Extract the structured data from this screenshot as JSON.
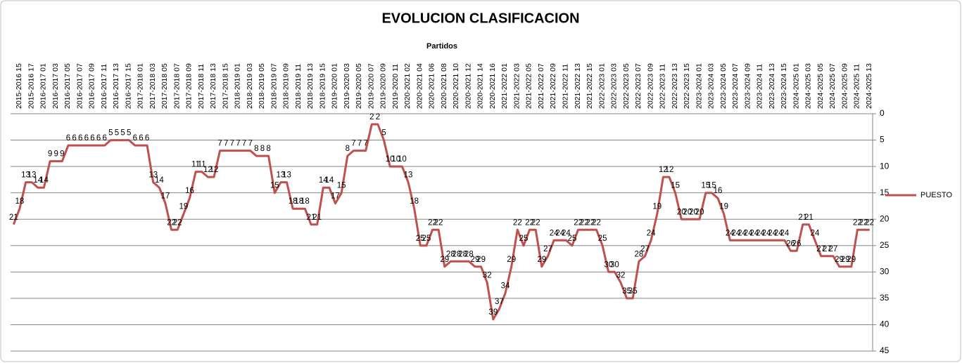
{
  "chart_data": {
    "type": "line",
    "title": "EVOLUCION CLASIFICACION",
    "x_label": "Partidos",
    "categories": [
      "2015-2016 15",
      null,
      "2015-2016 17",
      null,
      "2016-2017 01",
      null,
      "2016-2017 03",
      null,
      "2016-2017 05",
      null,
      "2016-2017 07",
      null,
      "2016-2017 09",
      null,
      "2016-2017 11",
      null,
      "2016-2017 13",
      null,
      "2016-2017 15",
      null,
      "2017-2018 01",
      null,
      "2017-2018 03",
      null,
      "2017-2018 05",
      null,
      "2017-2018 07",
      null,
      "2017-2018 09",
      null,
      "2017-2018 11",
      null,
      "2017-2018 13",
      null,
      "2017-2018 15",
      null,
      "2018-2019 01",
      null,
      "2018-2019 03",
      null,
      "2018-2019 05",
      null,
      "2018-2019 07",
      null,
      "2018-2019 09",
      null,
      "2018-2019 11",
      null,
      "2018-2019 13",
      null,
      "2018-2019 15",
      null,
      "2019-2020 01",
      null,
      "2019-2020 03",
      null,
      "2019-2020 05",
      null,
      "2019-2020 07",
      null,
      "2019-2020 09",
      null,
      "2019-2020 11",
      null,
      "2020-2021 02",
      null,
      "2020-2021 04",
      null,
      "2020-2021 06",
      null,
      "2020-2021 08",
      null,
      "2020-2021 10",
      null,
      "2020-2021 12",
      null,
      "2020-2021 14",
      null,
      "2020-2021 16",
      null,
      "2021-2022 01",
      null,
      "2021-2022 03",
      null,
      "2021-2022 05",
      null,
      "2021-2022 07",
      null,
      "2021-2022 09",
      null,
      "2021-2022 11",
      null,
      "2021-2022 13",
      null,
      "2021-2022 15",
      null,
      "2022-2023 01",
      null,
      "2022-2023 03",
      null,
      "2022-2023 05",
      null,
      "2022-2023 07",
      null,
      "2022-2023 09",
      null,
      "2022-2023 11",
      null,
      "2022-2023 13",
      null,
      "2022-2023 15",
      null,
      "2023-2024 01",
      null,
      "2023-2024 03",
      null,
      "2023-2024 05",
      null,
      "2023-2024 07",
      null,
      "2023-2024 09",
      null,
      "2023-2024 11",
      null,
      "2023-2024 13",
      null,
      "2023-2024 15",
      null,
      "2024-2025 01",
      null,
      "2024-2025 03",
      null,
      "2024-2025 05",
      null,
      "2024-2025 07",
      null,
      "2024-2025 09",
      null,
      "2024-2025 11",
      null,
      "2024-2025 13",
      null
    ],
    "series": [
      {
        "name": "PUESTO",
        "color": "#c0504d",
        "values": [
          21,
          18,
          13,
          13,
          14,
          14,
          9,
          9,
          9,
          6,
          6,
          6,
          6,
          6,
          6,
          6,
          5,
          5,
          5,
          5,
          6,
          6,
          6,
          13,
          14,
          17,
          22,
          22,
          19,
          16,
          11,
          11,
          12,
          12,
          7,
          7,
          7,
          7,
          7,
          7,
          8,
          8,
          8,
          15,
          13,
          13,
          18,
          18,
          18,
          21,
          21,
          14,
          14,
          17,
          15,
          8,
          7,
          7,
          7,
          2,
          2,
          5,
          10,
          10,
          10,
          13,
          18,
          25,
          25,
          22,
          22,
          29,
          28,
          28,
          28,
          28,
          29,
          29,
          32,
          39,
          37,
          34,
          29,
          22,
          25,
          22,
          22,
          29,
          27,
          24,
          24,
          24,
          25,
          22,
          22,
          22,
          22,
          25,
          30,
          30,
          32,
          35,
          35,
          28,
          27,
          24,
          19,
          12,
          12,
          15,
          20,
          20,
          20,
          20,
          15,
          15,
          16,
          19,
          24,
          24,
          24,
          24,
          24,
          24,
          24,
          24,
          24,
          24,
          26,
          26,
          21,
          21,
          24,
          27,
          27,
          27,
          29,
          29,
          29,
          22,
          22,
          22
        ]
      }
    ],
    "ylim": [
      0,
      45
    ],
    "yticks": [
      0,
      5,
      10,
      15,
      20,
      25,
      30,
      35,
      40,
      45
    ],
    "y_reversed": true,
    "grid": true,
    "legend": "right",
    "data_labels": true
  }
}
